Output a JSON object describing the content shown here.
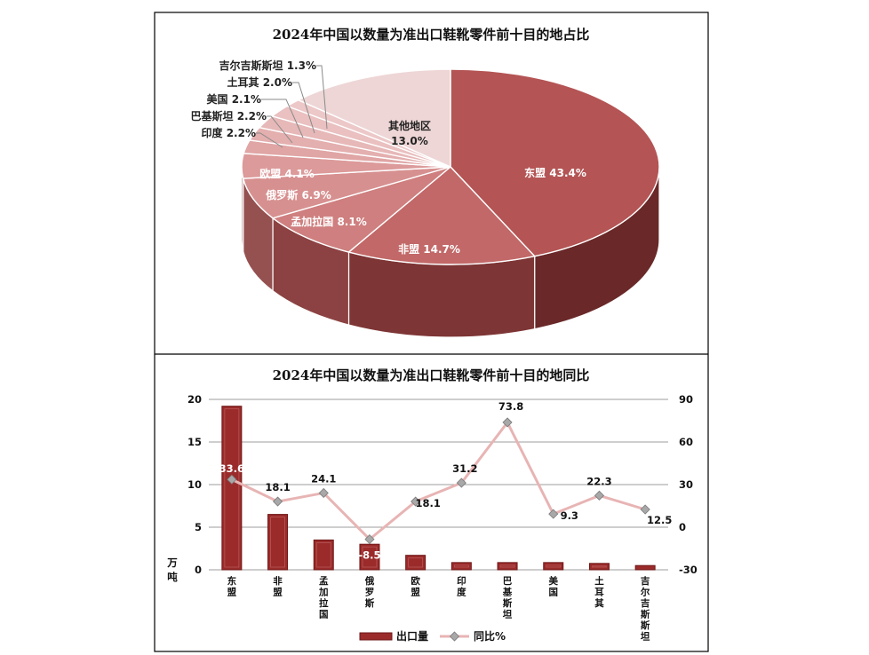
{
  "colors": {
    "bar": "#9b2b2b",
    "bar_dark": "#6e1616",
    "line": "#e8b4b4",
    "marker": "#a8a8a8",
    "pie_base": "#b95a5a"
  },
  "chart_data": [
    {
      "type": "pie",
      "title": "2024年中国以数量为准出口鞋靴零件前十目的地占比",
      "slices": [
        {
          "label": "东盟",
          "value": 43.4,
          "value_text": "43.4%"
        },
        {
          "label": "非盟",
          "value": 14.7,
          "value_text": "14.7%"
        },
        {
          "label": "孟加拉国",
          "value": 8.1,
          "value_text": "8.1%"
        },
        {
          "label": "俄罗斯",
          "value": 6.9,
          "value_text": "6.9%"
        },
        {
          "label": "欧盟",
          "value": 4.1,
          "value_text": "4.1%"
        },
        {
          "label": "印度",
          "value": 2.2,
          "value_text": "2.2%"
        },
        {
          "label": "巴基斯坦",
          "value": 2.2,
          "value_text": "2.2%"
        },
        {
          "label": "美国",
          "value": 2.1,
          "value_text": "2.1%"
        },
        {
          "label": "土耳其",
          "value": 2.0,
          "value_text": "2.0%"
        },
        {
          "label": "吉尔吉斯斯坦",
          "value": 1.3,
          "value_text": "1.3%"
        },
        {
          "label": "其他地区",
          "value": 13.0,
          "value_text": "13.0%"
        }
      ]
    },
    {
      "type": "bar",
      "title": "2024年中国以数量为准出口鞋靴零件前十目的地同比",
      "categories": [
        "东盟",
        "非盟",
        "孟加拉国",
        "俄罗斯",
        "欧盟",
        "印度",
        "巴基斯坦",
        "美国",
        "土耳其",
        "吉尔吉斯斯坦"
      ],
      "series": [
        {
          "name": "出口量",
          "axis": "left",
          "values": [
            19.2,
            6.5,
            3.5,
            3.0,
            1.7,
            0.85,
            0.85,
            0.85,
            0.75,
            0.5
          ]
        },
        {
          "name": "同比%",
          "axis": "right",
          "type": "line",
          "values": [
            33.6,
            18.1,
            24.1,
            -8.5,
            18.1,
            31.2,
            73.8,
            9.3,
            22.3,
            12.5
          ]
        }
      ],
      "ylabel": "万吨",
      "ylim": [
        0,
        20
      ],
      "y_ticks": [
        0,
        5,
        10,
        15,
        20
      ],
      "y2lim": [
        -30,
        90
      ],
      "y2_ticks": [
        -30,
        0,
        30,
        60,
        90
      ],
      "grid": true,
      "legend": "bottom"
    }
  ]
}
